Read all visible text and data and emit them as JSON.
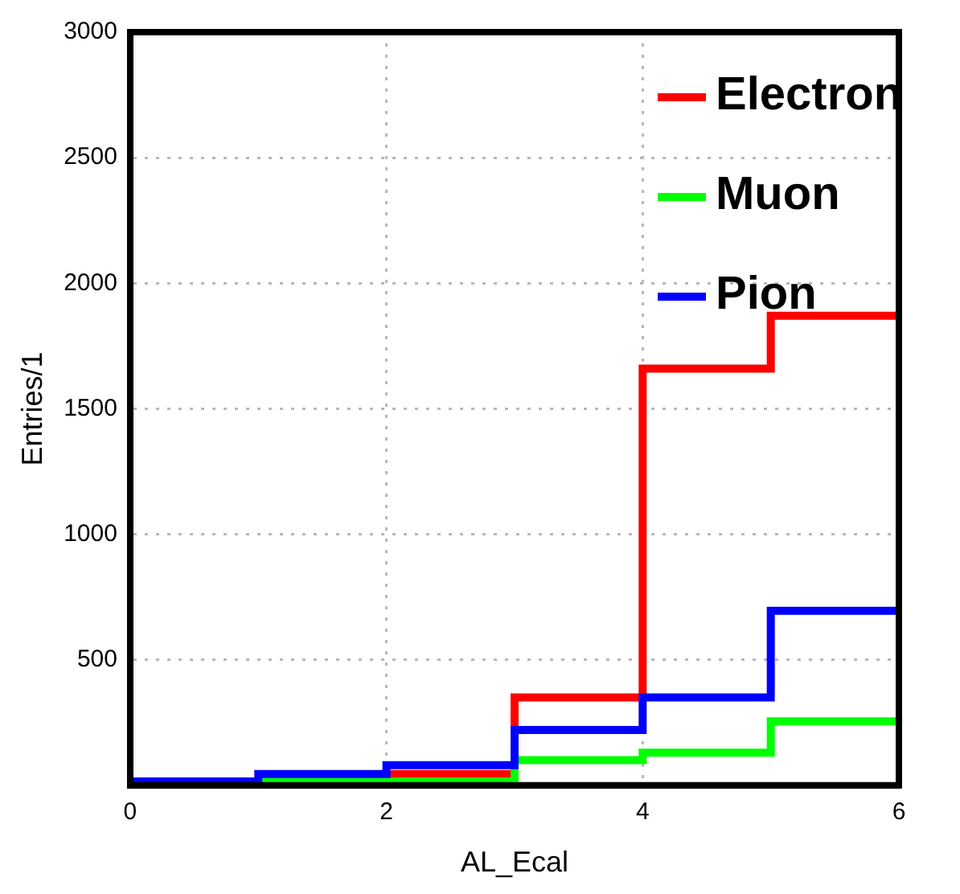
{
  "chart_data": {
    "type": "histogram",
    "xlabel": "AL_Ecal",
    "ylabel": "Entries/1",
    "bins": [
      0,
      1,
      2,
      3,
      4,
      5,
      6
    ],
    "series": [
      {
        "name": "Electron",
        "color": "#ff0000",
        "values": [
          15,
          15,
          45,
          350,
          1660,
          1870
        ]
      },
      {
        "name": "Muon",
        "color": "#00ff00",
        "values": [
          15,
          15,
          15,
          100,
          130,
          255
        ]
      },
      {
        "name": "Pion",
        "color": "#0000ff",
        "values": [
          15,
          45,
          80,
          220,
          350,
          695
        ]
      }
    ],
    "xlim": [
      0,
      6
    ],
    "xticks": [
      0,
      2,
      4,
      6
    ],
    "ylim": [
      0,
      3000
    ],
    "yticks": [
      {
        "value": 0,
        "label": null
      },
      500,
      1000,
      1500,
      2000,
      2500,
      3000
    ],
    "grid": true,
    "legend": "top right"
  }
}
